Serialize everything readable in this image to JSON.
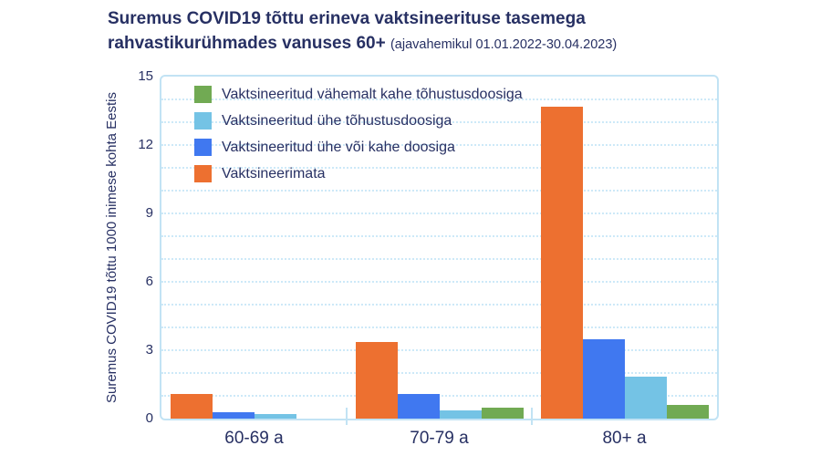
{
  "chart_data": {
    "type": "bar",
    "title": "Suremus COVID19 tõttu erineva vaktsineerituse tasemega rahvastikurühmades vanuses 60+",
    "subtitle_note": "(ajavahemikul 01.01.2022-30.04.2023)",
    "ylabel": "Suremus COVID19 tõttu 1000 inimese kohta Eestis",
    "categories": [
      "60-69 a",
      "70-79 a",
      "80+ a"
    ],
    "series": [
      {
        "name": "Vaktsineerimata",
        "color": "#ED7030",
        "values": [
          1.1,
          3.35,
          13.7
        ]
      },
      {
        "name": "Vaktsineeritud ühe või kahe doosiga",
        "color": "#4078F0",
        "values": [
          0.3,
          1.1,
          3.5
        ]
      },
      {
        "name": "Vaktsineeritud ühe tõhustusdoosiga",
        "color": "#74C3E5",
        "values": [
          0.2,
          0.35,
          1.85
        ]
      },
      {
        "name": "Vaktsineeritud vähemalt kahe tõhustusdoosiga",
        "color": "#71AA53",
        "values": [
          0,
          0.5,
          0.6
        ]
      }
    ],
    "legend_order": [
      3,
      2,
      1,
      0
    ],
    "legend_position": "top-left-inside",
    "ylim": [
      0,
      15
    ],
    "yticks": [
      0,
      3,
      6,
      9,
      12,
      15
    ],
    "grid": {
      "minor_step": 1,
      "style": "dotted",
      "color": "#cde9f8"
    },
    "text_color": "#273063"
  }
}
